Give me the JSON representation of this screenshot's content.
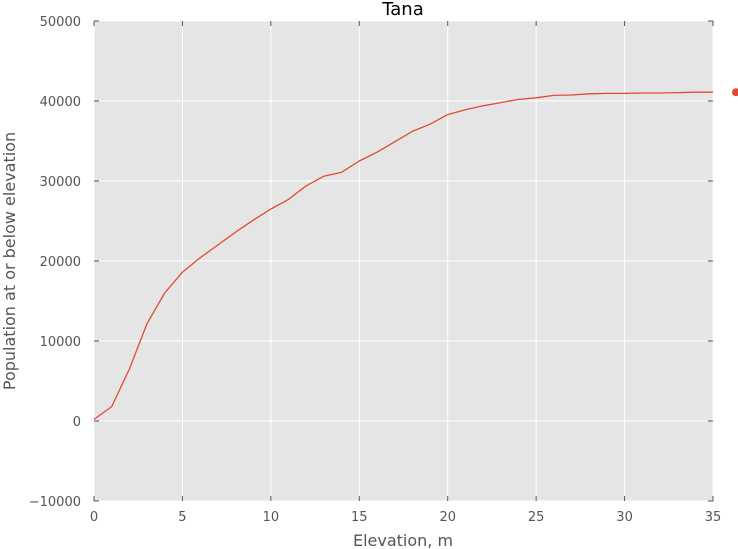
{
  "chart_data": {
    "type": "line",
    "title": "Tana",
    "xlabel": "Elevation, m",
    "ylabel": "Population at or below elevation",
    "xlim": [
      0,
      35
    ],
    "ylim": [
      -10000,
      50000
    ],
    "xticks": [
      0,
      5,
      10,
      15,
      20,
      25,
      30,
      35
    ],
    "yticks": [
      -10000,
      0,
      10000,
      20000,
      30000,
      40000,
      50000
    ],
    "grid": true,
    "background_color": "#e5e5e5",
    "grid_color": "#ffffff",
    "series": [
      {
        "color": "#e24a33",
        "x": [
          0,
          1,
          2,
          3,
          4,
          5,
          6,
          7,
          8,
          9,
          10,
          11,
          12,
          13,
          14,
          15,
          16,
          17,
          18,
          19,
          20,
          21,
          22,
          23,
          24,
          25,
          26,
          27,
          28,
          29,
          30,
          31,
          32,
          33,
          34,
          35
        ],
        "y": [
          200,
          1800,
          6500,
          12200,
          16000,
          18600,
          20400,
          22000,
          23600,
          25100,
          26500,
          27700,
          29400,
          30600,
          31100,
          32500,
          33600,
          34900,
          36200,
          37100,
          38300,
          38900,
          39400,
          39800,
          40200,
          40400,
          40700,
          40750,
          40900,
          40950,
          40950,
          41000,
          41000,
          41050,
          41100,
          41100
        ]
      }
    ],
    "marker": {
      "x": 36.3,
      "y": 41100,
      "color": "#e24a33"
    }
  }
}
